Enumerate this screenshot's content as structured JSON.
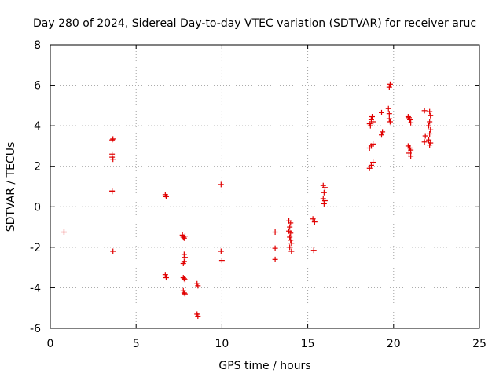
{
  "chart_data": {
    "type": "scatter",
    "title": "Day 280 of 2024, Sidereal Day-to-day VTEC variation (SDTVAR) for receiver aruc",
    "xlabel": "GPS time / hours",
    "ylabel": "SDTVAR / TECUs",
    "xlim": [
      0,
      25
    ],
    "ylim": [
      -6,
      8
    ],
    "xticks": [
      0,
      5,
      10,
      15,
      20,
      25
    ],
    "yticks": [
      -6,
      -4,
      -2,
      0,
      2,
      4,
      6,
      8
    ],
    "xtick_labels": [
      "0",
      "5",
      "10",
      "15",
      "20",
      "25"
    ],
    "ytick_labels": [
      "-6",
      "-4",
      "-2",
      "0",
      "2",
      "4",
      "6",
      "8"
    ],
    "grid": true,
    "legend": "none",
    "marker": "plus",
    "marker_color": "#e00000",
    "series": [
      {
        "name": "SDTVAR",
        "points": [
          [
            0.8,
            -1.25
          ],
          [
            3.6,
            3.3
          ],
          [
            3.65,
            3.35
          ],
          [
            3.6,
            2.6
          ],
          [
            3.6,
            2.45
          ],
          [
            3.65,
            2.35
          ],
          [
            3.6,
            0.78
          ],
          [
            3.6,
            0.75
          ],
          [
            3.65,
            -2.2
          ],
          [
            6.7,
            0.6
          ],
          [
            6.75,
            0.5
          ],
          [
            6.7,
            -3.35
          ],
          [
            6.75,
            -3.5
          ],
          [
            7.7,
            -1.4
          ],
          [
            7.75,
            -1.5
          ],
          [
            7.8,
            -1.55
          ],
          [
            7.85,
            -1.45
          ],
          [
            7.8,
            -2.35
          ],
          [
            7.85,
            -2.5
          ],
          [
            7.8,
            -2.7
          ],
          [
            7.75,
            -2.8
          ],
          [
            7.75,
            -3.5
          ],
          [
            7.8,
            -3.55
          ],
          [
            7.85,
            -3.6
          ],
          [
            7.75,
            -4.15
          ],
          [
            7.8,
            -4.25
          ],
          [
            7.85,
            -4.3
          ],
          [
            8.55,
            -3.8
          ],
          [
            8.6,
            -3.9
          ],
          [
            8.55,
            -5.3
          ],
          [
            8.6,
            -5.4
          ],
          [
            9.95,
            1.1
          ],
          [
            9.95,
            -2.2
          ],
          [
            10.0,
            -2.65
          ],
          [
            13.1,
            -1.25
          ],
          [
            13.1,
            -2.05
          ],
          [
            13.1,
            -2.6
          ],
          [
            13.9,
            -0.7
          ],
          [
            14.0,
            -0.8
          ],
          [
            13.95,
            -1.0
          ],
          [
            13.9,
            -1.2
          ],
          [
            14.0,
            -1.3
          ],
          [
            13.95,
            -1.5
          ],
          [
            14.0,
            -1.65
          ],
          [
            14.05,
            -1.8
          ],
          [
            13.95,
            -2.0
          ],
          [
            14.05,
            -2.2
          ],
          [
            15.3,
            -0.6
          ],
          [
            15.4,
            -0.75
          ],
          [
            15.35,
            -2.15
          ],
          [
            15.9,
            1.05
          ],
          [
            16.0,
            0.95
          ],
          [
            15.95,
            0.7
          ],
          [
            15.9,
            0.4
          ],
          [
            16.0,
            0.3
          ],
          [
            15.95,
            0.15
          ],
          [
            18.6,
            4.1
          ],
          [
            18.7,
            4.3
          ],
          [
            18.75,
            4.45
          ],
          [
            18.65,
            4.0
          ],
          [
            18.8,
            4.2
          ],
          [
            18.6,
            2.9
          ],
          [
            18.7,
            3.0
          ],
          [
            18.8,
            3.1
          ],
          [
            18.6,
            1.9
          ],
          [
            18.7,
            2.05
          ],
          [
            18.8,
            2.2
          ],
          [
            19.3,
            4.65
          ],
          [
            19.35,
            3.7
          ],
          [
            19.3,
            3.55
          ],
          [
            19.75,
            5.9
          ],
          [
            19.8,
            6.05
          ],
          [
            19.7,
            4.85
          ],
          [
            19.75,
            4.6
          ],
          [
            19.8,
            4.2
          ],
          [
            19.75,
            4.35
          ],
          [
            20.85,
            4.45
          ],
          [
            20.95,
            4.3
          ],
          [
            21.0,
            4.15
          ],
          [
            20.9,
            4.4
          ],
          [
            20.85,
            3.0
          ],
          [
            20.95,
            2.9
          ],
          [
            21.0,
            2.8
          ],
          [
            20.9,
            2.65
          ],
          [
            21.0,
            2.5
          ],
          [
            21.8,
            4.75
          ],
          [
            21.85,
            3.5
          ],
          [
            21.8,
            3.2
          ],
          [
            22.1,
            4.7
          ],
          [
            22.15,
            4.5
          ],
          [
            22.1,
            4.2
          ],
          [
            22.05,
            4.0
          ],
          [
            22.15,
            3.8
          ],
          [
            22.1,
            3.6
          ],
          [
            22.05,
            3.3
          ],
          [
            22.15,
            3.15
          ],
          [
            22.1,
            3.05
          ]
        ]
      }
    ]
  }
}
